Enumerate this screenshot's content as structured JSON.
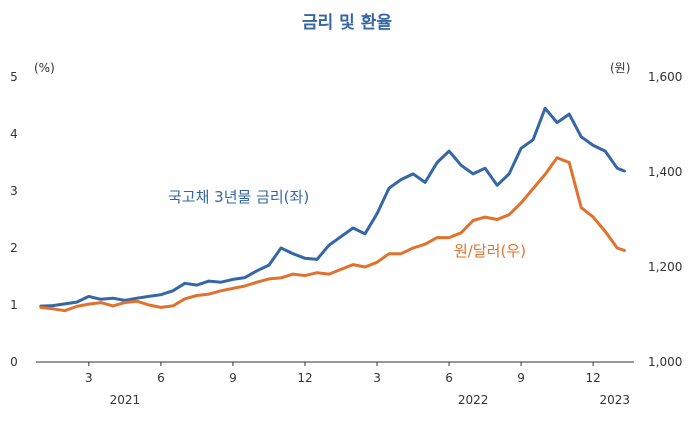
{
  "chart_data": {
    "type": "line",
    "title": "금리 및 환율",
    "left_axis": {
      "unit": "(%)",
      "ticks": [
        "0",
        "1",
        "2",
        "3",
        "4",
        "5"
      ],
      "ylim": [
        0,
        5
      ]
    },
    "right_axis": {
      "unit": "(원)",
      "ticks": [
        "1,000",
        "1,200",
        "1,400",
        "1,600"
      ],
      "ylim": [
        1000,
        1600
      ]
    },
    "x_ticks": [
      "3",
      "6",
      "9",
      "12",
      "3",
      "6",
      "9",
      "12"
    ],
    "x_tick_months": [
      2,
      5,
      8,
      11,
      14,
      17,
      20,
      23
    ],
    "year_labels": [
      "2021",
      "2022",
      "2023"
    ],
    "year_label_months": [
      3.5,
      18.0,
      23.9
    ],
    "xlim": [
      -0.2,
      24.7
    ],
    "series": [
      {
        "name": "국고채 3년물 금리(좌)",
        "axis": "left",
        "color": "#3566a6",
        "x": [
          0,
          0.5,
          1,
          1.5,
          2,
          2.5,
          3,
          3.5,
          4,
          4.5,
          5,
          5.5,
          6,
          6.5,
          7,
          7.5,
          8,
          8.5,
          9,
          9.5,
          10,
          10.5,
          11,
          11.5,
          12,
          12.5,
          13,
          13.5,
          14,
          14.5,
          15,
          15.5,
          16,
          16.5,
          17,
          17.5,
          18,
          18.5,
          19,
          19.5,
          20,
          20.5,
          21,
          21.5,
          22,
          22.5,
          23,
          23.5,
          24,
          24.3
        ],
        "values": [
          0.98,
          0.99,
          1.02,
          1.05,
          1.15,
          1.1,
          1.12,
          1.08,
          1.12,
          1.15,
          1.18,
          1.25,
          1.38,
          1.35,
          1.42,
          1.4,
          1.45,
          1.48,
          1.6,
          1.7,
          2.0,
          1.9,
          1.82,
          1.8,
          2.05,
          2.2,
          2.35,
          2.25,
          2.6,
          3.05,
          3.2,
          3.3,
          3.15,
          3.5,
          3.7,
          3.45,
          3.3,
          3.4,
          3.1,
          3.3,
          3.75,
          3.9,
          4.45,
          4.2,
          4.35,
          3.95,
          3.8,
          3.7,
          3.4,
          3.35
        ]
      },
      {
        "name": "원/달러(우)",
        "axis": "right",
        "color": "#e0722e",
        "x": [
          0,
          0.5,
          1,
          1.5,
          2,
          2.5,
          3,
          3.5,
          4,
          4.5,
          5,
          5.5,
          6,
          6.5,
          7,
          7.5,
          8,
          8.5,
          9,
          9.5,
          10,
          10.5,
          11,
          11.5,
          12,
          12.5,
          13,
          13.5,
          14,
          14.5,
          15,
          15.5,
          16,
          16.5,
          17,
          17.5,
          18,
          18.5,
          19,
          19.5,
          20,
          20.5,
          21,
          21.5,
          22,
          22.5,
          23,
          23.5,
          24,
          24.3
        ],
        "values": [
          1115,
          1112,
          1108,
          1117,
          1122,
          1125,
          1118,
          1125,
          1128,
          1120,
          1115,
          1118,
          1133,
          1140,
          1143,
          1150,
          1155,
          1160,
          1168,
          1175,
          1177,
          1185,
          1182,
          1188,
          1185,
          1195,
          1205,
          1200,
          1210,
          1228,
          1228,
          1240,
          1248,
          1262,
          1262,
          1272,
          1298,
          1305,
          1300,
          1310,
          1335,
          1365,
          1395,
          1430,
          1420,
          1325,
          1305,
          1275,
          1240,
          1235
        ]
      }
    ]
  }
}
